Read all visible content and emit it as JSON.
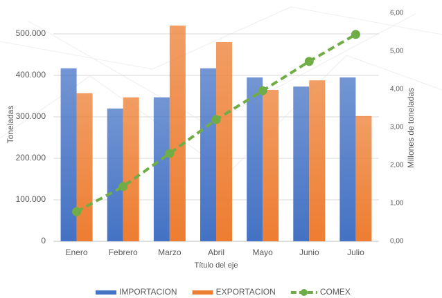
{
  "chart_data": {
    "type": "bar",
    "categories": [
      "Enero",
      "Febrero",
      "Marzo",
      "Abril",
      "Mayo",
      "Junio",
      "Julio"
    ],
    "series": [
      {
        "name": "IMPORTACION",
        "color": "#4472c4",
        "values": [
          417000,
          320000,
          347000,
          417000,
          395000,
          373000,
          395000
        ]
      },
      {
        "name": "EXPORTACION",
        "color": "#ed7d31",
        "values": [
          357000,
          347000,
          520000,
          480000,
          365000,
          388000,
          302000
        ]
      },
      {
        "name": "COMEX",
        "color": "#70ad47",
        "type": "line",
        "axis": "y2",
        "values": [
          0.78,
          1.44,
          2.31,
          3.2,
          3.96,
          4.73,
          5.44
        ]
      }
    ],
    "x_label": "Título del eje",
    "y_label": "Toneladas",
    "y2_label": "Millones de toneladas",
    "ylim": [
      0,
      550000
    ],
    "yticks": [
      0,
      {
        "value": 100000,
        "label": "100.000"
      },
      {
        "value": 200000,
        "label": "200.000"
      },
      {
        "value": 300000,
        "label": "300.000"
      },
      {
        "value": 400000,
        "label": "400.000"
      },
      {
        "value": 500000,
        "label": "500.000"
      }
    ],
    "y2lim": [
      0,
      6
    ],
    "y2ticks": [
      {
        "value": 0,
        "label": "0,00"
      },
      {
        "value": 1,
        "label": "1,00"
      },
      {
        "value": 2,
        "label": "2,00"
      },
      {
        "value": 3,
        "label": "3,00"
      },
      {
        "value": 4,
        "label": "4,00"
      },
      {
        "value": 5,
        "label": "5,00"
      },
      {
        "value": 6,
        "label": "6,00"
      }
    ],
    "grid": true,
    "legend": "bottom"
  }
}
